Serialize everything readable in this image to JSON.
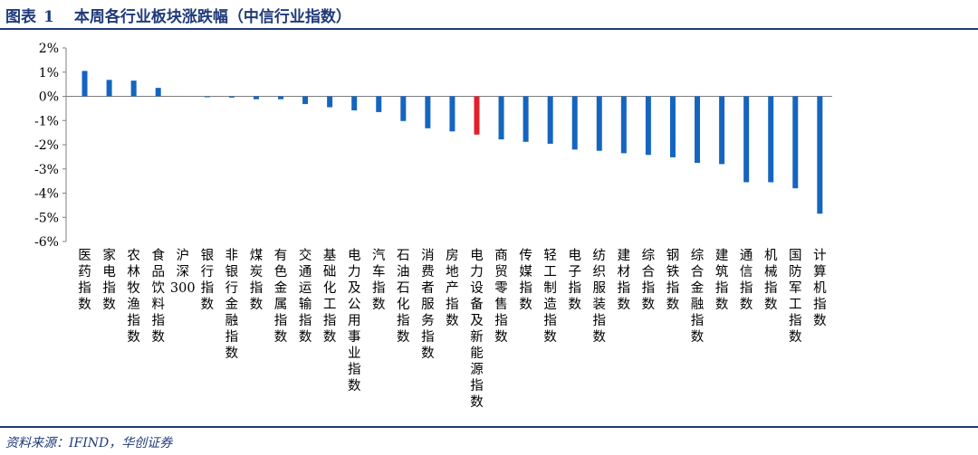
{
  "figure": {
    "label": "图表",
    "number": "1",
    "title": "本周各行业板块涨跌幅（中信行业指数）"
  },
  "source": "资料来源：IFIND，华创证券",
  "chart_data": {
    "type": "bar",
    "title": "本周各行业板块涨跌幅（中信行业指数）",
    "xlabel": "",
    "ylabel": "",
    "ylim": [
      -6,
      2
    ],
    "yticks": [
      "2%",
      "1%",
      "0%",
      "-1%",
      "-2%",
      "-3%",
      "-4%",
      "-5%",
      "-6%"
    ],
    "unit": "%",
    "grid": false,
    "legend": "none",
    "colors": {
      "default": "#1565c0",
      "highlight": "#e0202a"
    },
    "highlight": "电力设备及新能源指数",
    "categories": [
      "医药指数",
      "家电指数",
      "农林牧渔指数",
      "食品饮料指数",
      "沪深300",
      "银行指数",
      "非银行金融指数",
      "煤炭指数",
      "有色金属指数",
      "交通运输指数",
      "基础化工指数",
      "电力及公用事业指数",
      "汽车指数",
      "石油石化指数",
      "消费者服务指数",
      "房地产指数",
      "电力设备及新能源指数",
      "商贸零售指数",
      "传媒指数",
      "轻工制造指数",
      "电子指数",
      "纺织服装指数",
      "建材指数",
      "综合指数",
      "钢铁指数",
      "综合金融指数",
      "建筑指数",
      "通信指数",
      "机械指数",
      "国防军工指数",
      "计算机指数"
    ],
    "values": [
      1.05,
      0.68,
      0.65,
      0.35,
      0.0,
      -0.03,
      -0.05,
      -0.12,
      -0.12,
      -0.32,
      -0.45,
      -0.58,
      -0.65,
      -1.02,
      -1.32,
      -1.45,
      -1.58,
      -1.78,
      -1.88,
      -1.96,
      -2.2,
      -2.25,
      -2.35,
      -2.42,
      -2.52,
      -2.75,
      -2.8,
      -3.55,
      -3.55,
      -3.8,
      -4.85
    ]
  }
}
